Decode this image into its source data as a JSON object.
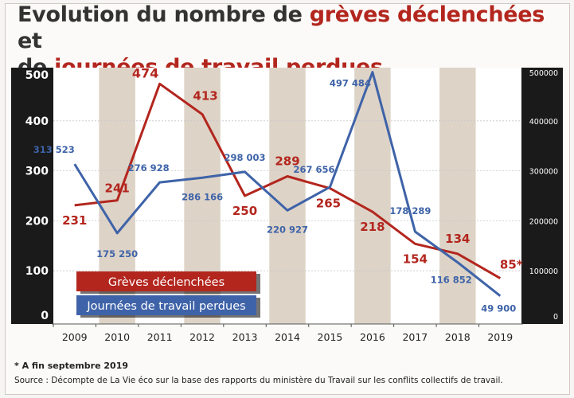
{
  "title": {
    "part1": "Evolution du nombre de ",
    "highlight1": "grèves déclenchées",
    "part2": " et",
    "part3": "de ",
    "highlight2": "journées de travail perdues"
  },
  "footnote": "* A fin septembre 2019",
  "source": "Source : Décompte de La Vie éco sur la base des rapports du ministère du Travail sur les conflits collectifs de travail.",
  "colors": {
    "red": "#b3261e",
    "blue": "#3e63a8",
    "axis_bg": "#1a1a1a",
    "stripe": "#ddd3c7",
    "plot_bg": "#ffffff"
  },
  "chart_data": {
    "type": "line",
    "categories": [
      "2009",
      "2010",
      "2011",
      "2012",
      "2013",
      "2014",
      "2015",
      "2016",
      "2017",
      "2018",
      "2019"
    ],
    "series": [
      {
        "name": "Grèves déclenchées",
        "axis": "left",
        "color": "#b3261e",
        "values": [
          231,
          241,
          474,
          413,
          250,
          289,
          265,
          218,
          154,
          134,
          85
        ],
        "labels": [
          "231",
          "241",
          "474",
          "413",
          "250",
          "289",
          "265",
          "218",
          "154",
          "134",
          "85*"
        ]
      },
      {
        "name": "Journées de travail perdues",
        "axis": "right",
        "color": "#3e63a8",
        "values": [
          313523,
          175250,
          276928,
          286166,
          298003,
          220927,
          267656,
          497484,
          178289,
          116852,
          49900
        ],
        "labels": [
          "313 523",
          "175 250",
          "276 928",
          "286 166",
          "298 003",
          "220 927",
          "267 656",
          "497 484",
          "178 289",
          "116 852",
          "49 900"
        ]
      }
    ],
    "left_axis": {
      "ylim": [
        0,
        500
      ],
      "ticks": [
        "0",
        "100",
        "200",
        "300",
        "400",
        "500"
      ]
    },
    "right_axis": {
      "ylim": [
        0,
        500000
      ],
      "ticks": [
        "0",
        "100000",
        "200000",
        "300000",
        "400000",
        "500000"
      ]
    },
    "alternating_stripes": true,
    "legend_placement": "bottom-left"
  }
}
